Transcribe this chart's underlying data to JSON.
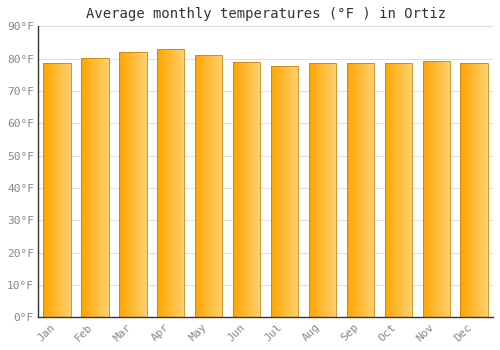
{
  "title": "Average monthly temperatures (°F ) in Ortiz",
  "categories": [
    "Jan",
    "Feb",
    "Mar",
    "Apr",
    "May",
    "Jun",
    "Jul",
    "Aug",
    "Sep",
    "Oct",
    "Nov",
    "Dec"
  ],
  "values": [
    78.8,
    80.2,
    82.0,
    83.0,
    81.0,
    79.0,
    77.8,
    78.5,
    78.8,
    78.8,
    79.2,
    78.8
  ],
  "ylim": [
    0,
    90
  ],
  "yticks": [
    0,
    10,
    20,
    30,
    40,
    50,
    60,
    70,
    80,
    90
  ],
  "ytick_labels": [
    "0°F",
    "10°F",
    "20°F",
    "30°F",
    "40°F",
    "50°F",
    "60°F",
    "70°F",
    "80°F",
    "90°F"
  ],
  "bar_color_left": "#FFA500",
  "bar_color_right": "#FFD070",
  "bar_edge_color": "#C8860A",
  "background_color": "#FFFFFF",
  "plot_bg_color": "#FFFFFF",
  "grid_color": "#DDDDDD",
  "title_fontsize": 10,
  "tick_fontsize": 8,
  "font_family": "monospace",
  "bar_width": 0.72,
  "bar_gap": 0.28
}
